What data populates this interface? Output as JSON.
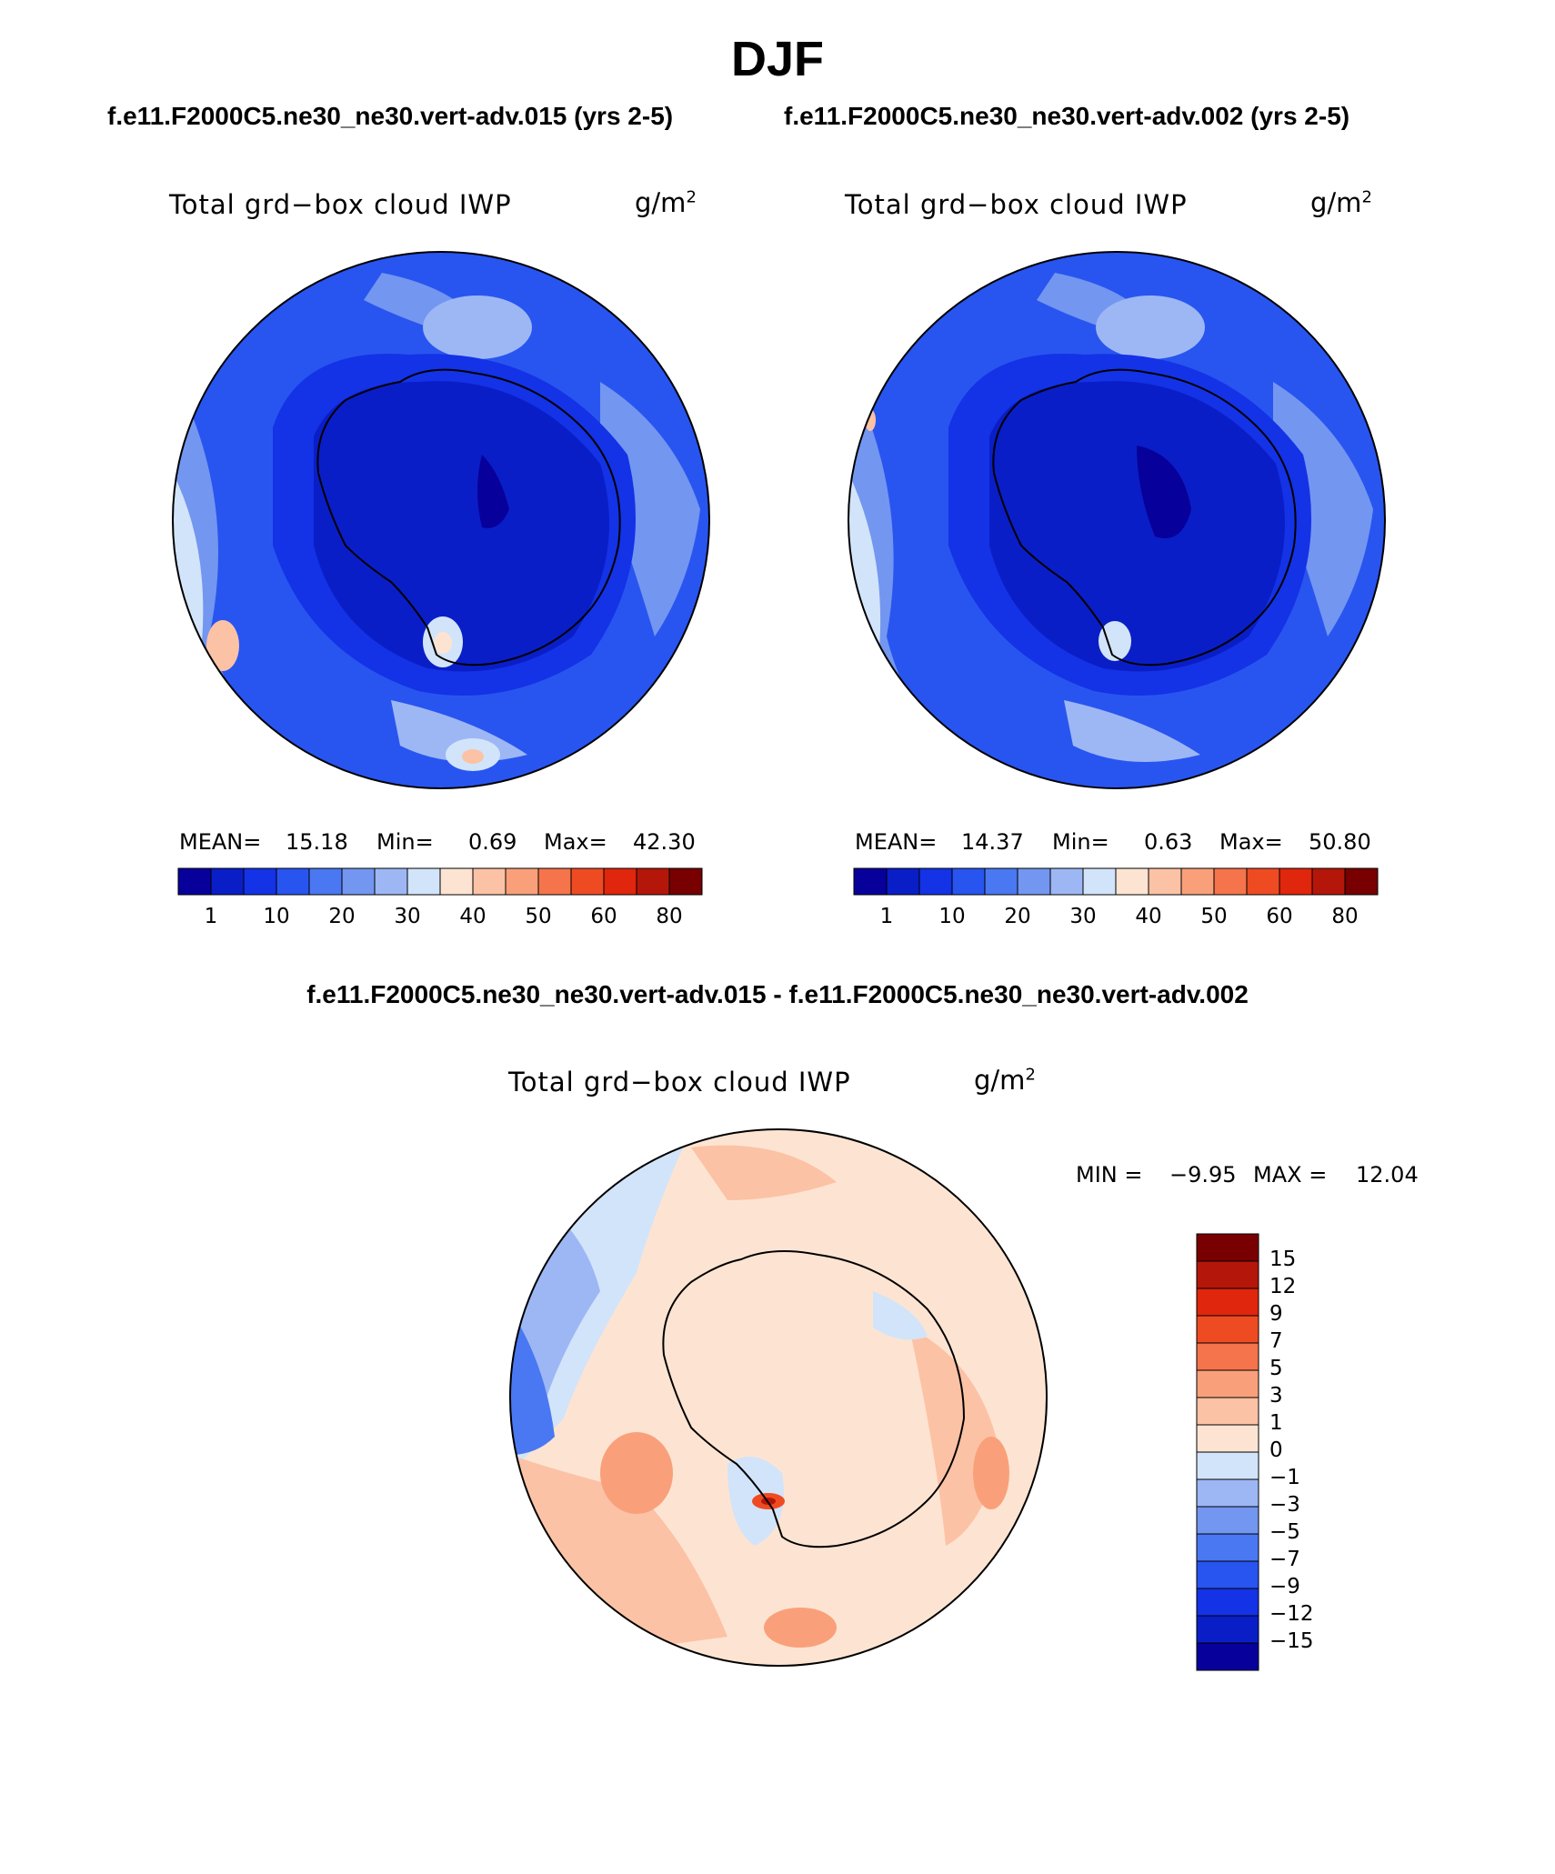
{
  "season": "DJF",
  "case_titles": {
    "left": "f.e11.F2000C5.ne30_ne30.vert-adv.015 (yrs 2-5)",
    "right": "f.e11.F2000C5.ne30_ne30.vert-adv.002 (yrs 2-5)"
  },
  "diff_title": "f.e11.F2000C5.ne30_ne30.vert-adv.015 - f.e11.F2000C5.ne30_ne30.vert-adv.002",
  "variable_label": "Total grd−box cloud IWP",
  "units": {
    "base": "g/m",
    "exp": "2"
  },
  "panels": [
    {
      "stats": {
        "mean_label": "MEAN=",
        "mean": "15.18",
        "min_label": "Min=",
        "min": "0.69",
        "max_label": "Max=",
        "max": "42.30"
      }
    },
    {
      "stats": {
        "mean_label": "MEAN=",
        "mean": "14.37",
        "min_label": "Min=",
        "min": "0.63",
        "max_label": "Max=",
        "max": "50.80"
      }
    }
  ],
  "diff_stats": {
    "min_label": "MIN =",
    "min": "−9.95",
    "max_label": "MAX =",
    "max": "12.04"
  },
  "field_colorbar": {
    "ticks": [
      "1",
      "10",
      "20",
      "30",
      "40",
      "50",
      "60",
      "80"
    ],
    "colors": [
      "#08009b",
      "#0a1ec7",
      "#1432e6",
      "#2855f0",
      "#4a78f2",
      "#7396f0",
      "#9db7f5",
      "#d2e4fa",
      "#fde4d2",
      "#fcc2a5",
      "#f9a07a",
      "#f5744b",
      "#ef4b23",
      "#e0260c",
      "#b4170a",
      "#780000"
    ]
  },
  "diff_colorbar": {
    "ticks": [
      "15",
      "12",
      "9",
      "7",
      "5",
      "3",
      "1",
      "0",
      "−1",
      "−3",
      "−5",
      "−7",
      "−9",
      "−12",
      "−15"
    ],
    "colors_top_to_bottom": [
      "#780000",
      "#b4170a",
      "#e0260c",
      "#ef4b23",
      "#f5744b",
      "#f9a07a",
      "#fcc2a5",
      "#fde4d2",
      "#d2e4fa",
      "#9db7f5",
      "#7396f0",
      "#4a78f2",
      "#2855f0",
      "#1432e6",
      "#0a1ec7",
      "#08009b"
    ]
  }
}
